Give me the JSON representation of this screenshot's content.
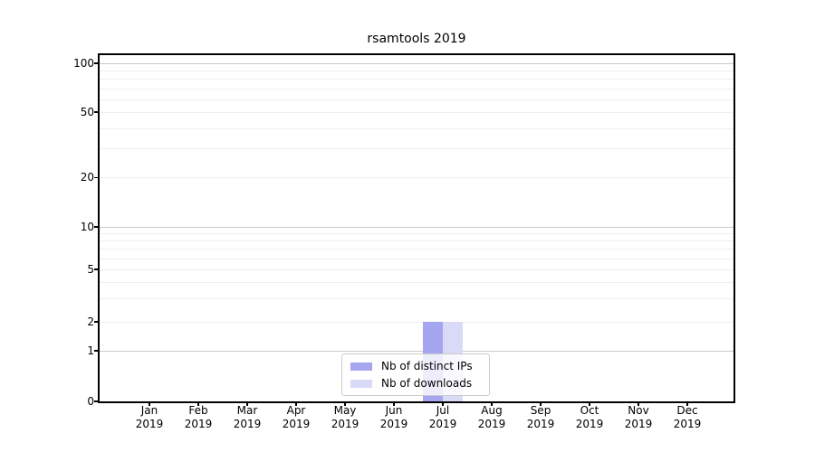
{
  "chart_data": {
    "type": "bar",
    "title": "rsamtools 2019",
    "categories": [
      "Jan",
      "Feb",
      "Mar",
      "Apr",
      "May",
      "Jun",
      "Jul",
      "Aug",
      "Sep",
      "Oct",
      "Nov",
      "Dec"
    ],
    "category_year": "2019",
    "series": [
      {
        "name": "Nb of distinct IPs",
        "color": "#a5a5f0",
        "values": [
          0,
          0,
          0,
          0,
          0,
          0,
          2,
          0,
          0,
          0,
          0,
          0
        ]
      },
      {
        "name": "Nb of downloads",
        "color": "#d9d9f8",
        "values": [
          0,
          0,
          0,
          0,
          0,
          0,
          2,
          0,
          0,
          0,
          0,
          0
        ]
      }
    ],
    "yticks": [
      0,
      1,
      2,
      5,
      10,
      20,
      50,
      100
    ],
    "major_gridlines": [
      1,
      10,
      100
    ],
    "minor_gridlines": [
      3,
      4,
      6,
      7,
      8,
      9,
      30,
      40,
      60,
      70,
      80,
      90
    ],
    "ylim": [
      0,
      120
    ],
    "yscale": "log-symmetric-zero",
    "xlabel": "",
    "ylabel": "",
    "grid": true,
    "legend_position": "lower center"
  },
  "colors": {
    "background": "#ffffff",
    "axis": "#000000",
    "grid_major": "#c9c9c9",
    "grid_minor": "#efefef",
    "text": "#000000",
    "legend_border": "#cccccc",
    "legend_background": "rgba(255,255,255,0.8)"
  }
}
